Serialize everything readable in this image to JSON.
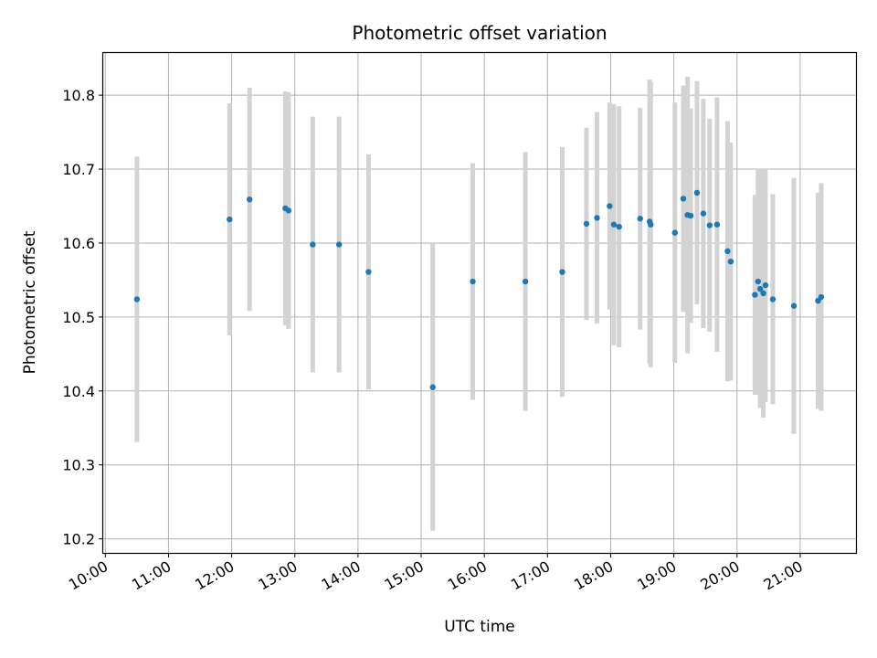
{
  "chart_data": {
    "type": "scatter",
    "title": "Photometric offset variation",
    "xlabel": "UTC time",
    "ylabel": "Photometric offset",
    "x_tick_labels": [
      "10:00",
      "11:00",
      "12:00",
      "13:00",
      "14:00",
      "15:00",
      "16:00",
      "17:00",
      "18:00",
      "19:00",
      "20:00",
      "21:00"
    ],
    "y_tick_labels": [
      "10.2",
      "10.3",
      "10.4",
      "10.5",
      "10.6",
      "10.7",
      "10.8"
    ],
    "xlim": [
      "09:58",
      "21:53"
    ],
    "ylim": [
      10.181,
      10.857
    ],
    "grid": true,
    "colors": {
      "points": "#1f77b4",
      "errorbars": "#d3d3d3",
      "grid": "#b0b0b0"
    },
    "points": [
      {
        "x": "10:30",
        "y": 10.524,
        "err": 0.193
      },
      {
        "x": "11:58",
        "y": 10.632,
        "err": 0.157
      },
      {
        "x": "12:17",
        "y": 10.659,
        "err": 0.151
      },
      {
        "x": "12:51",
        "y": 10.647,
        "err": 0.158
      },
      {
        "x": "12:54",
        "y": 10.644,
        "err": 0.16
      },
      {
        "x": "13:17",
        "y": 10.598,
        "err": 0.173
      },
      {
        "x": "13:42",
        "y": 10.598,
        "err": 0.173
      },
      {
        "x": "14:10",
        "y": 10.561,
        "err": 0.159
      },
      {
        "x": "15:11",
        "y": 10.405,
        "err": 0.194
      },
      {
        "x": "15:49",
        "y": 10.548,
        "err": 0.16
      },
      {
        "x": "16:39",
        "y": 10.548,
        "err": 0.175
      },
      {
        "x": "17:14",
        "y": 10.561,
        "err": 0.169
      },
      {
        "x": "17:37",
        "y": 10.626,
        "err": 0.13
      },
      {
        "x": "17:47",
        "y": 10.634,
        "err": 0.143
      },
      {
        "x": "17:59",
        "y": 10.65,
        "err": 0.14
      },
      {
        "x": "18:03",
        "y": 10.625,
        "err": 0.163
      },
      {
        "x": "18:08",
        "y": 10.622,
        "err": 0.163
      },
      {
        "x": "18:28",
        "y": 10.633,
        "err": 0.15
      },
      {
        "x": "18:37",
        "y": 10.629,
        "err": 0.192
      },
      {
        "x": "18:38",
        "y": 10.625,
        "err": 0.193
      },
      {
        "x": "19:01",
        "y": 10.614,
        "err": 0.176
      },
      {
        "x": "19:09",
        "y": 10.66,
        "err": 0.153
      },
      {
        "x": "19:13",
        "y": 10.638,
        "err": 0.187
      },
      {
        "x": "19:16",
        "y": 10.637,
        "err": 0.145
      },
      {
        "x": "19:22",
        "y": 10.668,
        "err": 0.151
      },
      {
        "x": "19:28",
        "y": 10.64,
        "err": 0.155
      },
      {
        "x": "19:34",
        "y": 10.624,
        "err": 0.144
      },
      {
        "x": "19:41",
        "y": 10.625,
        "err": 0.172
      },
      {
        "x": "19:51",
        "y": 10.589,
        "err": 0.176
      },
      {
        "x": "19:54",
        "y": 10.575,
        "err": 0.161
      },
      {
        "x": "20:17",
        "y": 10.53,
        "err": 0.135
      },
      {
        "x": "20:20",
        "y": 10.548,
        "err": 0.153
      },
      {
        "x": "20:22",
        "y": 10.538,
        "err": 0.161
      },
      {
        "x": "20:25",
        "y": 10.532,
        "err": 0.168
      },
      {
        "x": "20:27",
        "y": 10.543,
        "err": 0.158
      },
      {
        "x": "20:34",
        "y": 10.524,
        "err": 0.142
      },
      {
        "x": "20:54",
        "y": 10.515,
        "err": 0.173
      },
      {
        "x": "21:17",
        "y": 10.522,
        "err": 0.146
      },
      {
        "x": "21:20",
        "y": 10.527,
        "err": 0.154
      }
    ]
  }
}
